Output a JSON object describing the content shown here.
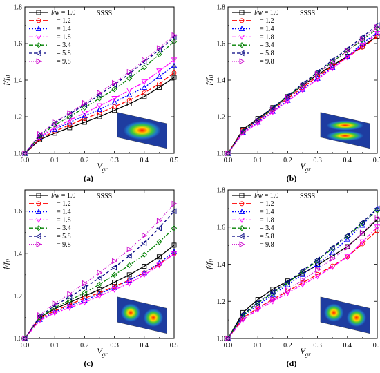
{
  "figure": {
    "boundary_condition": "SSSS",
    "legend_prefix": "l/w",
    "panel_labels": [
      "(a)",
      "(b)",
      "(c)",
      "(d)"
    ]
  },
  "chart_data": [
    {
      "type": "line",
      "panel": "(a)",
      "xlabel": "V_gr",
      "ylabel": "f/f_0",
      "xlim": [
        0.0,
        0.5
      ],
      "ylim": [
        1.0,
        1.8
      ],
      "x_ticks": [
        "0.0",
        "0.1",
        "0.2",
        "0.3",
        "0.4",
        "0.5"
      ],
      "y_ticks": [
        "1.0",
        "1.2",
        "1.4",
        "1.6",
        "1.8"
      ],
      "annotation": "SSSS",
      "legend_position": "top-left",
      "x": [
        0.0,
        0.05,
        0.1,
        0.15,
        0.2,
        0.25,
        0.3,
        0.35,
        0.4,
        0.45,
        0.5
      ],
      "series": [
        {
          "name": "= 1.0",
          "color": "#000000",
          "marker": "square",
          "dash": "",
          "values": [
            1.0,
            1.075,
            1.11,
            1.14,
            1.17,
            1.2,
            1.235,
            1.27,
            1.31,
            1.36,
            1.415
          ]
        },
        {
          "name": "= 1.2",
          "color": "#ff0000",
          "marker": "circle",
          "dash": "7,3",
          "values": [
            1.0,
            1.08,
            1.12,
            1.155,
            1.19,
            1.22,
            1.255,
            1.29,
            1.33,
            1.38,
            1.44
          ]
        },
        {
          "name": "= 1.4",
          "color": "#0000ff",
          "marker": "triangle-up",
          "dash": "2,2",
          "values": [
            1.0,
            1.085,
            1.13,
            1.17,
            1.205,
            1.24,
            1.28,
            1.32,
            1.36,
            1.42,
            1.48
          ]
        },
        {
          "name": "= 1.8",
          "color": "#ff00ff",
          "marker": "triangle-down",
          "dash": "6,2,2,2",
          "values": [
            1.0,
            1.09,
            1.14,
            1.18,
            1.22,
            1.26,
            1.3,
            1.345,
            1.39,
            1.45,
            1.51
          ]
        },
        {
          "name": "= 3.4",
          "color": "#008000",
          "marker": "diamond",
          "dash": "6,2,2,2,2,2",
          "values": [
            1.0,
            1.095,
            1.155,
            1.2,
            1.25,
            1.3,
            1.35,
            1.41,
            1.47,
            1.54,
            1.61
          ]
        },
        {
          "name": "= 5.8",
          "color": "#000080",
          "marker": "triangle-left",
          "dash": "4,3",
          "values": [
            1.0,
            1.1,
            1.165,
            1.215,
            1.265,
            1.32,
            1.375,
            1.435,
            1.5,
            1.565,
            1.635
          ]
        },
        {
          "name": "= 9.8",
          "color": "#cc00cc",
          "marker": "triangle-right",
          "dash": "1,2",
          "values": [
            1.0,
            1.105,
            1.17,
            1.22,
            1.275,
            1.33,
            1.385,
            1.445,
            1.51,
            1.575,
            1.645
          ]
        }
      ]
    },
    {
      "type": "line",
      "panel": "(b)",
      "xlabel": "V_gr",
      "ylabel": "f/f_0",
      "xlim": [
        0.0,
        0.5
      ],
      "ylim": [
        1.0,
        1.8
      ],
      "x_ticks": [
        "0.0",
        "0.1",
        "0.2",
        "0.3",
        "0.4",
        "0.5"
      ],
      "y_ticks": [
        "1.0",
        "1.2",
        "1.4",
        "1.6",
        "1.8"
      ],
      "annotation": "SSSS",
      "legend_position": "top-left",
      "x": [
        0.0,
        0.05,
        0.1,
        0.15,
        0.2,
        0.25,
        0.3,
        0.35,
        0.4,
        0.45,
        0.5
      ],
      "series": [
        {
          "name": "= 1.0",
          "color": "#000000",
          "marker": "square",
          "dash": "",
          "values": [
            1.0,
            1.13,
            1.19,
            1.25,
            1.31,
            1.37,
            1.43,
            1.48,
            1.53,
            1.585,
            1.64
          ]
        },
        {
          "name": "= 1.2",
          "color": "#ff0000",
          "marker": "circle",
          "dash": "7,3",
          "values": [
            1.0,
            1.125,
            1.18,
            1.24,
            1.3,
            1.36,
            1.42,
            1.475,
            1.525,
            1.58,
            1.635
          ]
        },
        {
          "name": "= 1.4",
          "color": "#0000ff",
          "marker": "triangle-up",
          "dash": "2,2",
          "values": [
            1.0,
            1.115,
            1.17,
            1.23,
            1.29,
            1.35,
            1.41,
            1.47,
            1.53,
            1.6,
            1.66
          ]
        },
        {
          "name": "= 1.8",
          "color": "#ff00ff",
          "marker": "triangle-down",
          "dash": "6,2,2,2",
          "values": [
            1.0,
            1.11,
            1.165,
            1.225,
            1.285,
            1.345,
            1.405,
            1.465,
            1.525,
            1.59,
            1.655
          ]
        },
        {
          "name": "= 3.4",
          "color": "#008000",
          "marker": "diamond",
          "dash": "6,2,2,2,2,2",
          "values": [
            1.0,
            1.12,
            1.18,
            1.245,
            1.31,
            1.375,
            1.44,
            1.5,
            1.56,
            1.62,
            1.68
          ]
        },
        {
          "name": "= 5.8",
          "color": "#000080",
          "marker": "triangle-left",
          "dash": "4,3",
          "values": [
            1.0,
            1.12,
            1.185,
            1.25,
            1.315,
            1.38,
            1.445,
            1.51,
            1.57,
            1.635,
            1.7
          ]
        },
        {
          "name": "= 9.8",
          "color": "#cc00cc",
          "marker": "triangle-right",
          "dash": "1,2",
          "values": [
            1.0,
            1.115,
            1.175,
            1.24,
            1.305,
            1.37,
            1.435,
            1.495,
            1.56,
            1.625,
            1.69
          ]
        }
      ]
    },
    {
      "type": "line",
      "panel": "(c)",
      "xlabel": "V_gr",
      "ylabel": "f/f_0",
      "xlim": [
        0.0,
        0.5
      ],
      "ylim": [
        1.0,
        1.7
      ],
      "x_ticks": [
        "0.0",
        "0.1",
        "0.2",
        "0.3",
        "0.4",
        "0.5"
      ],
      "y_ticks": [
        "1.0",
        "1.2",
        "1.4",
        "1.6"
      ],
      "annotation": "SSSS",
      "legend_position": "top-left",
      "x": [
        0.0,
        0.05,
        0.1,
        0.15,
        0.2,
        0.25,
        0.3,
        0.35,
        0.4,
        0.45,
        0.5
      ],
      "series": [
        {
          "name": "= 1.0",
          "color": "#000000",
          "marker": "square",
          "dash": "",
          "values": [
            1.0,
            1.1,
            1.14,
            1.17,
            1.2,
            1.23,
            1.265,
            1.3,
            1.34,
            1.385,
            1.44
          ]
        },
        {
          "name": "= 1.2",
          "color": "#ff0000",
          "marker": "circle",
          "dash": "7,3",
          "values": [
            1.0,
            1.095,
            1.13,
            1.16,
            1.19,
            1.215,
            1.245,
            1.275,
            1.31,
            1.35,
            1.4
          ]
        },
        {
          "name": "= 1.4",
          "color": "#0000ff",
          "marker": "triangle-up",
          "dash": "2,2",
          "values": [
            1.0,
            1.09,
            1.125,
            1.155,
            1.18,
            1.21,
            1.24,
            1.275,
            1.31,
            1.355,
            1.41
          ]
        },
        {
          "name": "= 1.8",
          "color": "#ff00ff",
          "marker": "triangle-down",
          "dash": "6,2,2,2",
          "values": [
            1.0,
            1.085,
            1.12,
            1.145,
            1.17,
            1.2,
            1.23,
            1.26,
            1.3,
            1.345,
            1.4
          ]
        },
        {
          "name": "= 3.4",
          "color": "#008000",
          "marker": "diamond",
          "dash": "6,2,2,2,2,2",
          "values": [
            1.0,
            1.1,
            1.145,
            1.18,
            1.215,
            1.255,
            1.3,
            1.345,
            1.395,
            1.455,
            1.52
          ]
        },
        {
          "name": "= 5.8",
          "color": "#000080",
          "marker": "triangle-left",
          "dash": "4,3",
          "values": [
            1.0,
            1.105,
            1.155,
            1.195,
            1.24,
            1.285,
            1.335,
            1.39,
            1.45,
            1.52,
            1.6
          ]
        },
        {
          "name": "= 9.8",
          "color": "#cc00cc",
          "marker": "triangle-right",
          "dash": "1,2",
          "values": [
            1.0,
            1.11,
            1.165,
            1.21,
            1.26,
            1.31,
            1.365,
            1.42,
            1.485,
            1.555,
            1.635
          ]
        }
      ]
    },
    {
      "type": "line",
      "panel": "(d)",
      "xlabel": "V_gr",
      "ylabel": "f/f_0",
      "xlim": [
        0.0,
        0.5
      ],
      "ylim": [
        1.0,
        1.8
      ],
      "x_ticks": [
        "0.0",
        "0.1",
        "0.2",
        "0.3",
        "0.4",
        "0.5"
      ],
      "y_ticks": [
        "1.0",
        "1.2",
        "1.4",
        "1.6",
        "1.8"
      ],
      "annotation": "SSSS",
      "legend_position": "top-left",
      "x": [
        0.0,
        0.05,
        0.1,
        0.15,
        0.2,
        0.25,
        0.3,
        0.35,
        0.4,
        0.45,
        0.5
      ],
      "series": [
        {
          "name": "= 1.0",
          "color": "#000000",
          "marker": "square",
          "dash": "",
          "values": [
            1.0,
            1.14,
            1.21,
            1.265,
            1.31,
            1.35,
            1.395,
            1.445,
            1.495,
            1.565,
            1.64
          ]
        },
        {
          "name": "= 1.2",
          "color": "#ff0000",
          "marker": "circle",
          "dash": "7,3",
          "values": [
            1.0,
            1.11,
            1.165,
            1.21,
            1.255,
            1.3,
            1.345,
            1.39,
            1.44,
            1.51,
            1.58
          ]
        },
        {
          "name": "= 1.4",
          "color": "#0000ff",
          "marker": "triangle-up",
          "dash": "2,2",
          "values": [
            1.0,
            1.12,
            1.18,
            1.235,
            1.29,
            1.345,
            1.4,
            1.465,
            1.535,
            1.61,
            1.7
          ]
        },
        {
          "name": "= 1.8",
          "color": "#ff00ff",
          "marker": "triangle-down",
          "dash": "6,2,2,2",
          "values": [
            1.0,
            1.1,
            1.155,
            1.2,
            1.245,
            1.29,
            1.335,
            1.385,
            1.44,
            1.52,
            1.6
          ]
        },
        {
          "name": "= 3.4",
          "color": "#008000",
          "marker": "diamond",
          "dash": "6,2,2,2,2,2",
          "values": [
            1.0,
            1.125,
            1.19,
            1.245,
            1.3,
            1.36,
            1.42,
            1.485,
            1.55,
            1.62,
            1.69
          ]
        },
        {
          "name": "= 5.8",
          "color": "#000080",
          "marker": "triangle-left",
          "dash": "4,3",
          "values": [
            1.0,
            1.13,
            1.195,
            1.25,
            1.305,
            1.365,
            1.425,
            1.49,
            1.555,
            1.625,
            1.7
          ]
        },
        {
          "name": "= 9.8",
          "color": "#cc00cc",
          "marker": "triangle-right",
          "dash": "1,2",
          "values": [
            1.0,
            1.105,
            1.16,
            1.21,
            1.26,
            1.315,
            1.37,
            1.43,
            1.49,
            1.57,
            1.65
          ]
        }
      ]
    }
  ]
}
